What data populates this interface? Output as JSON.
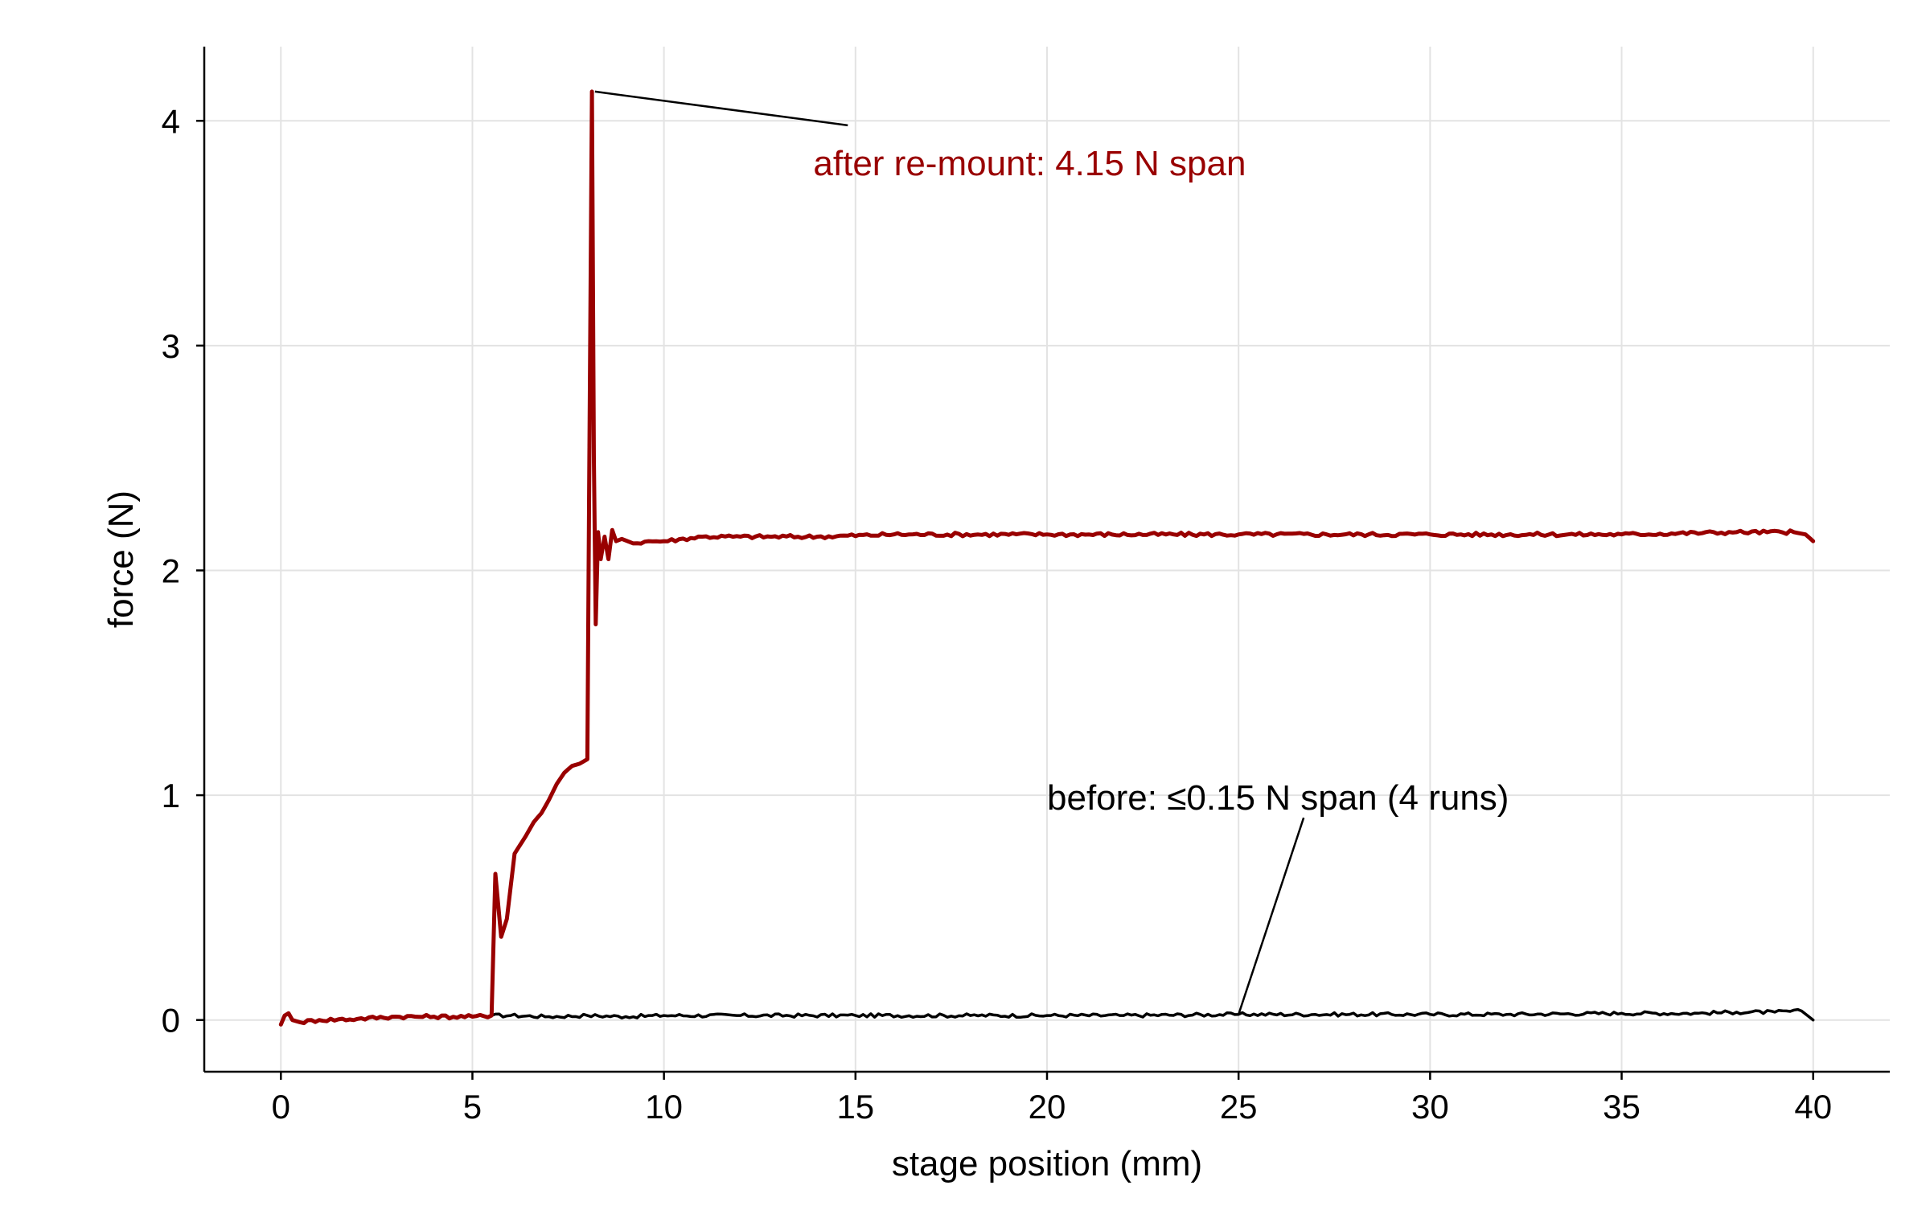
{
  "chart_data": {
    "type": "line",
    "xlabel": "stage position (mm)",
    "ylabel": "force (N)",
    "xlim": [
      -2,
      42
    ],
    "ylim": [
      -0.23,
      4.33
    ],
    "xticks": [
      0,
      5,
      10,
      15,
      20,
      25,
      30,
      35,
      40
    ],
    "yticks": [
      0,
      1,
      2,
      3,
      4
    ],
    "grid": true,
    "colors": {
      "before": "#000000",
      "after": "#990000",
      "grid": "#e3e3e3",
      "axis": "#000000"
    },
    "series": [
      {
        "key": "before",
        "x": [
          5.5,
          6,
          7,
          8,
          9,
          10,
          12,
          15,
          18,
          20,
          22,
          25,
          27,
          30,
          32,
          35,
          37,
          38,
          39,
          39.7,
          40
        ],
        "y": [
          0.02,
          0.02,
          0.015,
          0.02,
          0.015,
          0.02,
          0.02,
          0.02,
          0.02,
          0.02,
          0.02,
          0.025,
          0.025,
          0.025,
          0.025,
          0.03,
          0.03,
          0.035,
          0.035,
          0.04,
          0.0
        ]
      },
      {
        "key": "after",
        "x": [
          0,
          0.1,
          0.2,
          0.3,
          0.5,
          1,
          2,
          3,
          4,
          5,
          5.5,
          5.6,
          5.75,
          5.9,
          6.1,
          6.4,
          6.6,
          6.8,
          7.0,
          7.2,
          7.4,
          7.6,
          7.8,
          8.0,
          8.05,
          8.12,
          8.17,
          8.22,
          8.28,
          8.35,
          8.45,
          8.55,
          8.65,
          8.75,
          8.9,
          9.2,
          9.6,
          10,
          11,
          12,
          14,
          16,
          20,
          25,
          30,
          35,
          38,
          39.5,
          39.8,
          40
        ],
        "y": [
          -0.02,
          0.02,
          0.03,
          0.0,
          -0.01,
          0.0,
          0.005,
          0.015,
          0.015,
          0.015,
          0.02,
          0.65,
          0.37,
          0.45,
          0.74,
          0.82,
          0.88,
          0.92,
          0.98,
          1.05,
          1.1,
          1.13,
          1.14,
          1.16,
          2.4,
          4.13,
          2.5,
          1.76,
          2.17,
          2.05,
          2.15,
          2.05,
          2.18,
          2.13,
          2.14,
          2.12,
          2.13,
          2.13,
          2.15,
          2.15,
          2.15,
          2.16,
          2.16,
          2.16,
          2.16,
          2.16,
          2.17,
          2.17,
          2.16,
          2.13
        ]
      }
    ],
    "annotations": [
      {
        "key": "after",
        "text": "after re-mount: 4.15 N span",
        "point": [
          8.2,
          4.13
        ],
        "text_pos": [
          14.8,
          3.98
        ]
      },
      {
        "key": "before",
        "text": "before: ≤0.15 N span (4 runs)",
        "point": [
          25.0,
          0.025
        ],
        "text_pos": [
          26.7,
          0.9
        ]
      }
    ]
  }
}
